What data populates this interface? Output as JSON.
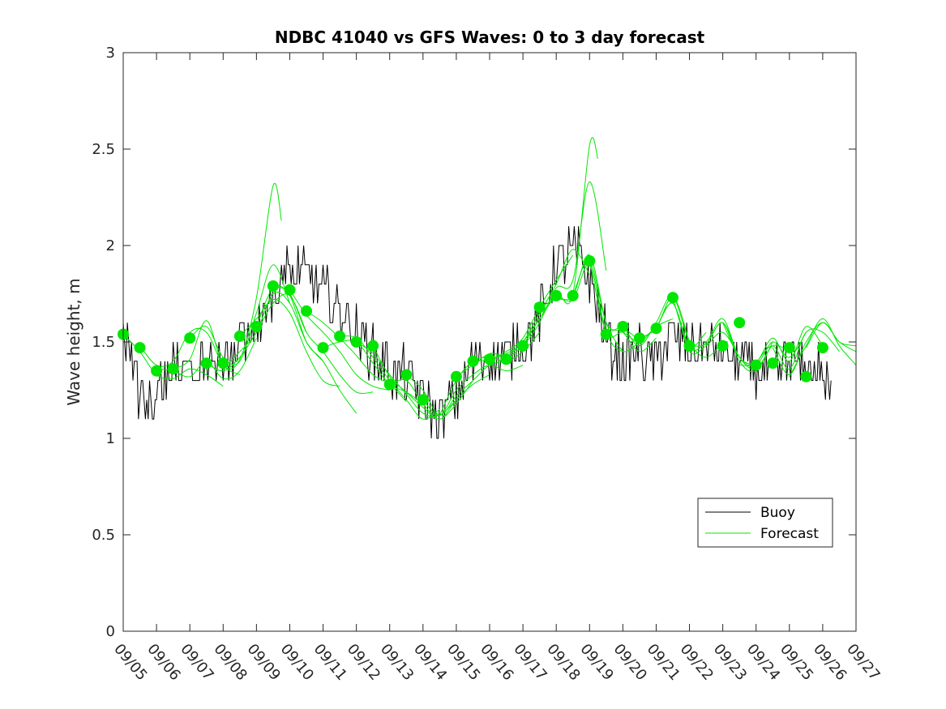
{
  "chart_data": {
    "type": "line",
    "title": "NDBC 41040 vs GFS Waves: 0 to 3 day forecast",
    "xlabel": "",
    "ylabel": "Wave height, m",
    "xlim": [
      0,
      22
    ],
    "ylim": [
      0,
      3
    ],
    "y_ticks": [
      0,
      0.5,
      1,
      1.5,
      2,
      2.5,
      3
    ],
    "y_tick_labels": [
      "0",
      "0.5",
      "1",
      "1.5",
      "2",
      "2.5",
      "3"
    ],
    "x_ticks": [
      0,
      1,
      2,
      3,
      4,
      5,
      6,
      7,
      8,
      9,
      10,
      11,
      12,
      13,
      14,
      15,
      16,
      17,
      18,
      19,
      20,
      21,
      22
    ],
    "x_tick_labels": [
      "09/05",
      "09/06",
      "09/07",
      "09/08",
      "09/09",
      "09/10",
      "09/11",
      "09/12",
      "09/13",
      "09/14",
      "09/15",
      "09/16",
      "09/17",
      "09/18",
      "09/19",
      "09/20",
      "09/21",
      "09/22",
      "09/23",
      "09/24",
      "09/25",
      "09/26",
      "09/27"
    ],
    "legend": {
      "position": "lower-right",
      "entries": [
        "Buoy",
        "Forecast"
      ]
    },
    "colors": {
      "buoy": "#000000",
      "forecast": "#00e600"
    },
    "buoy_trend": [
      [
        0.0,
        1.5
      ],
      [
        0.25,
        1.42
      ],
      [
        0.5,
        1.25
      ],
      [
        0.75,
        1.16
      ],
      [
        1.0,
        1.22
      ],
      [
        1.25,
        1.3
      ],
      [
        1.5,
        1.35
      ],
      [
        2.0,
        1.35
      ],
      [
        2.5,
        1.38
      ],
      [
        3.0,
        1.42
      ],
      [
        3.5,
        1.48
      ],
      [
        4.0,
        1.58
      ],
      [
        4.5,
        1.78
      ],
      [
        5.0,
        1.88
      ],
      [
        5.5,
        1.85
      ],
      [
        6.0,
        1.75
      ],
      [
        6.5,
        1.65
      ],
      [
        7.0,
        1.55
      ],
      [
        7.5,
        1.45
      ],
      [
        8.0,
        1.35
      ],
      [
        8.5,
        1.32
      ],
      [
        9.0,
        1.2
      ],
      [
        9.5,
        1.12
      ],
      [
        10.0,
        1.22
      ],
      [
        10.5,
        1.4
      ],
      [
        11.0,
        1.42
      ],
      [
        11.5,
        1.45
      ],
      [
        12.0,
        1.5
      ],
      [
        12.5,
        1.62
      ],
      [
        13.0,
        1.9
      ],
      [
        13.5,
        1.98
      ],
      [
        14.0,
        1.85
      ],
      [
        14.5,
        1.5
      ],
      [
        15.0,
        1.42
      ],
      [
        15.5,
        1.45
      ],
      [
        16.0,
        1.42
      ],
      [
        16.5,
        1.52
      ],
      [
        17.0,
        1.48
      ],
      [
        17.5,
        1.47
      ],
      [
        18.0,
        1.45
      ],
      [
        18.5,
        1.38
      ],
      [
        19.0,
        1.35
      ],
      [
        19.5,
        1.32
      ],
      [
        20.0,
        1.38
      ],
      [
        20.5,
        1.36
      ],
      [
        21.0,
        1.34
      ],
      [
        21.25,
        1.2
      ]
    ],
    "forecast_runs": [
      [
        [
          0.0,
          1.54
        ],
        [
          0.5,
          1.45
        ],
        [
          1.0,
          1.33
        ],
        [
          1.5,
          1.31
        ],
        [
          2.0,
          1.36
        ],
        [
          2.5,
          1.33
        ],
        [
          3.0,
          1.27
        ]
      ],
      [
        [
          0.5,
          1.48
        ],
        [
          1.0,
          1.38
        ],
        [
          1.5,
          1.4
        ],
        [
          2.0,
          1.55
        ],
        [
          2.5,
          1.55
        ],
        [
          3.0,
          1.38
        ],
        [
          3.5,
          1.33
        ]
      ],
      [
        [
          1.0,
          1.36
        ],
        [
          1.5,
          1.35
        ],
        [
          2.0,
          1.32
        ],
        [
          2.5,
          1.4
        ],
        [
          3.0,
          1.31
        ],
        [
          3.5,
          1.35
        ],
        [
          4.0,
          1.52
        ]
      ],
      [
        [
          1.5,
          1.36
        ],
        [
          2.0,
          1.41
        ],
        [
          2.5,
          1.61
        ],
        [
          3.0,
          1.38
        ],
        [
          3.5,
          1.41
        ],
        [
          4.0,
          1.73
        ],
        [
          4.5,
          2.31
        ],
        [
          4.75,
          2.13
        ]
      ],
      [
        [
          2.0,
          1.52
        ],
        [
          2.5,
          1.58
        ],
        [
          3.0,
          1.42
        ],
        [
          3.5,
          1.4
        ],
        [
          4.0,
          1.65
        ],
        [
          4.5,
          1.9
        ],
        [
          5.0,
          1.7
        ]
      ],
      [
        [
          2.5,
          1.39
        ],
        [
          3.0,
          1.35
        ],
        [
          3.5,
          1.42
        ],
        [
          4.0,
          1.55
        ],
        [
          4.5,
          1.7
        ],
        [
          5.0,
          1.74
        ],
        [
          5.5,
          1.55
        ]
      ],
      [
        [
          3.0,
          1.36
        ],
        [
          3.5,
          1.45
        ],
        [
          4.0,
          1.55
        ],
        [
          4.5,
          1.75
        ],
        [
          5.0,
          1.7
        ],
        [
          5.5,
          1.5
        ],
        [
          6.0,
          1.4
        ]
      ],
      [
        [
          3.5,
          1.53
        ],
        [
          4.0,
          1.62
        ],
        [
          4.5,
          1.72
        ],
        [
          5.0,
          1.65
        ],
        [
          5.5,
          1.45
        ],
        [
          6.0,
          1.3
        ],
        [
          6.5,
          1.27
        ]
      ],
      [
        [
          4.0,
          1.58
        ],
        [
          4.5,
          1.78
        ],
        [
          5.0,
          1.74
        ],
        [
          5.5,
          1.5
        ],
        [
          6.0,
          1.4
        ],
        [
          6.5,
          1.25
        ],
        [
          7.0,
          1.13
        ]
      ],
      [
        [
          4.5,
          1.79
        ],
        [
          5.0,
          1.75
        ],
        [
          5.5,
          1.55
        ],
        [
          6.0,
          1.45
        ],
        [
          6.5,
          1.33
        ],
        [
          7.0,
          1.24
        ],
        [
          7.5,
          1.24
        ]
      ],
      [
        [
          5.0,
          1.77
        ],
        [
          5.5,
          1.64
        ],
        [
          6.0,
          1.55
        ],
        [
          6.5,
          1.45
        ],
        [
          7.0,
          1.33
        ],
        [
          7.5,
          1.27
        ],
        [
          8.0,
          1.25
        ]
      ],
      [
        [
          5.5,
          1.66
        ],
        [
          6.0,
          1.6
        ],
        [
          6.5,
          1.52
        ],
        [
          7.0,
          1.43
        ],
        [
          7.5,
          1.33
        ],
        [
          8.0,
          1.28
        ],
        [
          8.5,
          1.19
        ]
      ],
      [
        [
          6.0,
          1.47
        ],
        [
          6.5,
          1.5
        ],
        [
          7.0,
          1.5
        ],
        [
          7.5,
          1.39
        ],
        [
          8.0,
          1.28
        ],
        [
          8.5,
          1.24
        ],
        [
          9.0,
          1.18
        ]
      ],
      [
        [
          6.5,
          1.53
        ],
        [
          7.0,
          1.52
        ],
        [
          7.5,
          1.42
        ],
        [
          8.0,
          1.3
        ],
        [
          8.5,
          1.2
        ],
        [
          9.0,
          1.1
        ],
        [
          9.5,
          1.15
        ]
      ],
      [
        [
          7.0,
          1.5
        ],
        [
          7.5,
          1.44
        ],
        [
          8.0,
          1.33
        ],
        [
          8.5,
          1.23
        ],
        [
          9.0,
          1.13
        ],
        [
          9.5,
          1.12
        ],
        [
          10.0,
          1.2
        ]
      ],
      [
        [
          7.5,
          1.48
        ],
        [
          8.0,
          1.32
        ],
        [
          8.5,
          1.24
        ],
        [
          9.0,
          1.16
        ],
        [
          9.5,
          1.1
        ],
        [
          10.0,
          1.18
        ],
        [
          10.5,
          1.3
        ]
      ],
      [
        [
          8.0,
          1.28
        ],
        [
          8.5,
          1.3
        ],
        [
          9.0,
          1.18
        ],
        [
          9.5,
          1.1
        ],
        [
          10.0,
          1.2
        ],
        [
          10.5,
          1.28
        ],
        [
          11.0,
          1.33
        ]
      ],
      [
        [
          8.5,
          1.33
        ],
        [
          9.0,
          1.25
        ],
        [
          9.5,
          1.12
        ],
        [
          10.0,
          1.22
        ],
        [
          10.5,
          1.3
        ],
        [
          11.0,
          1.38
        ],
        [
          11.5,
          1.4
        ]
      ],
      [
        [
          9.0,
          1.2
        ],
        [
          9.5,
          1.12
        ],
        [
          10.0,
          1.25
        ],
        [
          10.5,
          1.33
        ],
        [
          11.0,
          1.38
        ],
        [
          11.5,
          1.35
        ],
        [
          12.0,
          1.38
        ]
      ],
      [
        [
          9.5,
          1.12
        ],
        [
          10.0,
          1.3
        ],
        [
          10.5,
          1.4
        ],
        [
          11.0,
          1.42
        ],
        [
          11.5,
          1.4
        ],
        [
          12.0,
          1.45
        ],
        [
          12.5,
          1.55
        ]
      ],
      [
        [
          10.0,
          1.32
        ],
        [
          10.5,
          1.38
        ],
        [
          11.0,
          1.44
        ],
        [
          11.5,
          1.43
        ],
        [
          12.0,
          1.5
        ],
        [
          12.5,
          1.62
        ],
        [
          13.0,
          1.75
        ]
      ],
      [
        [
          10.5,
          1.4
        ],
        [
          11.0,
          1.41
        ],
        [
          11.5,
          1.45
        ],
        [
          12.0,
          1.52
        ],
        [
          12.5,
          1.68
        ],
        [
          13.0,
          1.82
        ],
        [
          13.5,
          1.95
        ]
      ],
      [
        [
          11.0,
          1.41
        ],
        [
          11.5,
          1.44
        ],
        [
          12.0,
          1.5
        ],
        [
          12.5,
          1.65
        ],
        [
          13.0,
          1.8
        ],
        [
          13.5,
          1.98
        ],
        [
          14.0,
          1.85
        ]
      ],
      [
        [
          11.5,
          1.41
        ],
        [
          12.0,
          1.48
        ],
        [
          12.5,
          1.6
        ],
        [
          13.0,
          1.78
        ],
        [
          13.5,
          1.82
        ],
        [
          14.0,
          2.33
        ],
        [
          14.5,
          1.87
        ]
      ],
      [
        [
          12.0,
          1.48
        ],
        [
          12.5,
          1.62
        ],
        [
          13.0,
          1.75
        ],
        [
          13.5,
          1.75
        ],
        [
          14.0,
          2.52
        ],
        [
          14.25,
          2.45
        ]
      ],
      [
        [
          12.5,
          1.68
        ],
        [
          13.0,
          1.72
        ],
        [
          13.5,
          1.74
        ],
        [
          14.0,
          1.95
        ],
        [
          14.5,
          1.6
        ],
        [
          15.0,
          1.45
        ]
      ],
      [
        [
          13.0,
          1.74
        ],
        [
          13.5,
          1.72
        ],
        [
          14.0,
          1.9
        ],
        [
          14.5,
          1.55
        ],
        [
          15.0,
          1.45
        ],
        [
          15.5,
          1.5
        ]
      ],
      [
        [
          13.5,
          1.74
        ],
        [
          14.0,
          1.92
        ],
        [
          14.5,
          1.6
        ],
        [
          15.0,
          1.55
        ],
        [
          15.5,
          1.45
        ],
        [
          16.0,
          1.52
        ]
      ],
      [
        [
          14.0,
          1.92
        ],
        [
          14.5,
          1.55
        ],
        [
          15.0,
          1.55
        ],
        [
          15.5,
          1.5
        ],
        [
          16.0,
          1.58
        ],
        [
          16.5,
          1.62
        ]
      ],
      [
        [
          14.5,
          1.54
        ],
        [
          15.0,
          1.57
        ],
        [
          15.5,
          1.48
        ],
        [
          16.0,
          1.6
        ],
        [
          16.5,
          1.74
        ],
        [
          17.0,
          1.5
        ]
      ],
      [
        [
          15.0,
          1.58
        ],
        [
          15.5,
          1.52
        ],
        [
          16.0,
          1.58
        ],
        [
          16.5,
          1.7
        ],
        [
          17.0,
          1.48
        ],
        [
          17.5,
          1.55
        ]
      ],
      [
        [
          15.5,
          1.52
        ],
        [
          16.0,
          1.57
        ],
        [
          16.5,
          1.73
        ],
        [
          17.0,
          1.5
        ],
        [
          17.5,
          1.42
        ],
        [
          18.0,
          1.5
        ]
      ],
      [
        [
          16.0,
          1.57
        ],
        [
          16.5,
          1.7
        ],
        [
          17.0,
          1.45
        ],
        [
          17.5,
          1.48
        ],
        [
          18.0,
          1.55
        ],
        [
          18.5,
          1.42
        ]
      ],
      [
        [
          16.5,
          1.73
        ],
        [
          17.0,
          1.47
        ],
        [
          17.5,
          1.5
        ],
        [
          18.0,
          1.62
        ],
        [
          18.5,
          1.42
        ],
        [
          19.0,
          1.38
        ]
      ],
      [
        [
          17.0,
          1.48
        ],
        [
          17.5,
          1.49
        ],
        [
          18.0,
          1.6
        ],
        [
          18.5,
          1.4
        ],
        [
          19.0,
          1.35
        ],
        [
          19.5,
          1.5
        ]
      ],
      [
        [
          17.5,
          1.48
        ],
        [
          18.0,
          1.6
        ],
        [
          18.5,
          1.42
        ],
        [
          19.0,
          1.36
        ],
        [
          19.5,
          1.48
        ],
        [
          20.0,
          1.45
        ]
      ],
      [
        [
          18.0,
          1.6
        ],
        [
          18.5,
          1.42
        ],
        [
          19.0,
          1.38
        ],
        [
          19.5,
          1.5
        ],
        [
          20.0,
          1.42
        ],
        [
          20.5,
          1.55
        ]
      ],
      [
        [
          18.5,
          1.38
        ],
        [
          19.0,
          1.39
        ],
        [
          19.5,
          1.52
        ],
        [
          20.0,
          1.4
        ],
        [
          20.5,
          1.58
        ],
        [
          21.0,
          1.48
        ]
      ],
      [
        [
          19.0,
          1.39
        ],
        [
          19.5,
          1.48
        ],
        [
          20.0,
          1.36
        ],
        [
          20.5,
          1.55
        ],
        [
          21.0,
          1.55
        ],
        [
          21.5,
          1.45
        ]
      ],
      [
        [
          19.5,
          1.47
        ],
        [
          20.0,
          1.33
        ],
        [
          20.5,
          1.5
        ],
        [
          21.0,
          1.6
        ],
        [
          21.5,
          1.5
        ],
        [
          22.0,
          1.45
        ]
      ],
      [
        [
          20.0,
          1.32
        ],
        [
          20.5,
          1.48
        ],
        [
          21.0,
          1.62
        ],
        [
          21.5,
          1.48
        ],
        [
          22.0,
          1.38
        ]
      ],
      [
        [
          20.5,
          1.47
        ],
        [
          21.0,
          1.6
        ],
        [
          21.5,
          1.5
        ],
        [
          22.0,
          1.48
        ]
      ]
    ],
    "forecast_markers": [
      [
        0.0,
        1.54
      ],
      [
        0.5,
        1.47
      ],
      [
        1.0,
        1.35
      ],
      [
        1.5,
        1.36
      ],
      [
        2.0,
        1.52
      ],
      [
        2.5,
        1.39
      ],
      [
        3.0,
        1.39
      ],
      [
        3.5,
        1.53
      ],
      [
        4.0,
        1.58
      ],
      [
        4.5,
        1.79
      ],
      [
        5.0,
        1.77
      ],
      [
        5.5,
        1.66
      ],
      [
        6.0,
        1.47
      ],
      [
        6.5,
        1.53
      ],
      [
        7.0,
        1.5
      ],
      [
        7.5,
        1.48
      ],
      [
        8.0,
        1.28
      ],
      [
        8.5,
        1.33
      ],
      [
        9.0,
        1.2
      ],
      [
        10.0,
        1.32
      ],
      [
        10.5,
        1.4
      ],
      [
        11.0,
        1.41
      ],
      [
        11.5,
        1.41
      ],
      [
        12.0,
        1.48
      ],
      [
        12.5,
        1.68
      ],
      [
        13.0,
        1.74
      ],
      [
        13.5,
        1.74
      ],
      [
        14.0,
        1.92
      ],
      [
        14.5,
        1.54
      ],
      [
        15.0,
        1.58
      ],
      [
        15.5,
        1.52
      ],
      [
        16.0,
        1.57
      ],
      [
        16.5,
        1.73
      ],
      [
        17.0,
        1.48
      ],
      [
        18.0,
        1.48
      ],
      [
        18.5,
        1.6
      ],
      [
        19.0,
        1.38
      ],
      [
        19.5,
        1.39
      ],
      [
        20.0,
        1.47
      ],
      [
        20.5,
        1.32
      ],
      [
        21.0,
        1.47
      ]
    ]
  }
}
